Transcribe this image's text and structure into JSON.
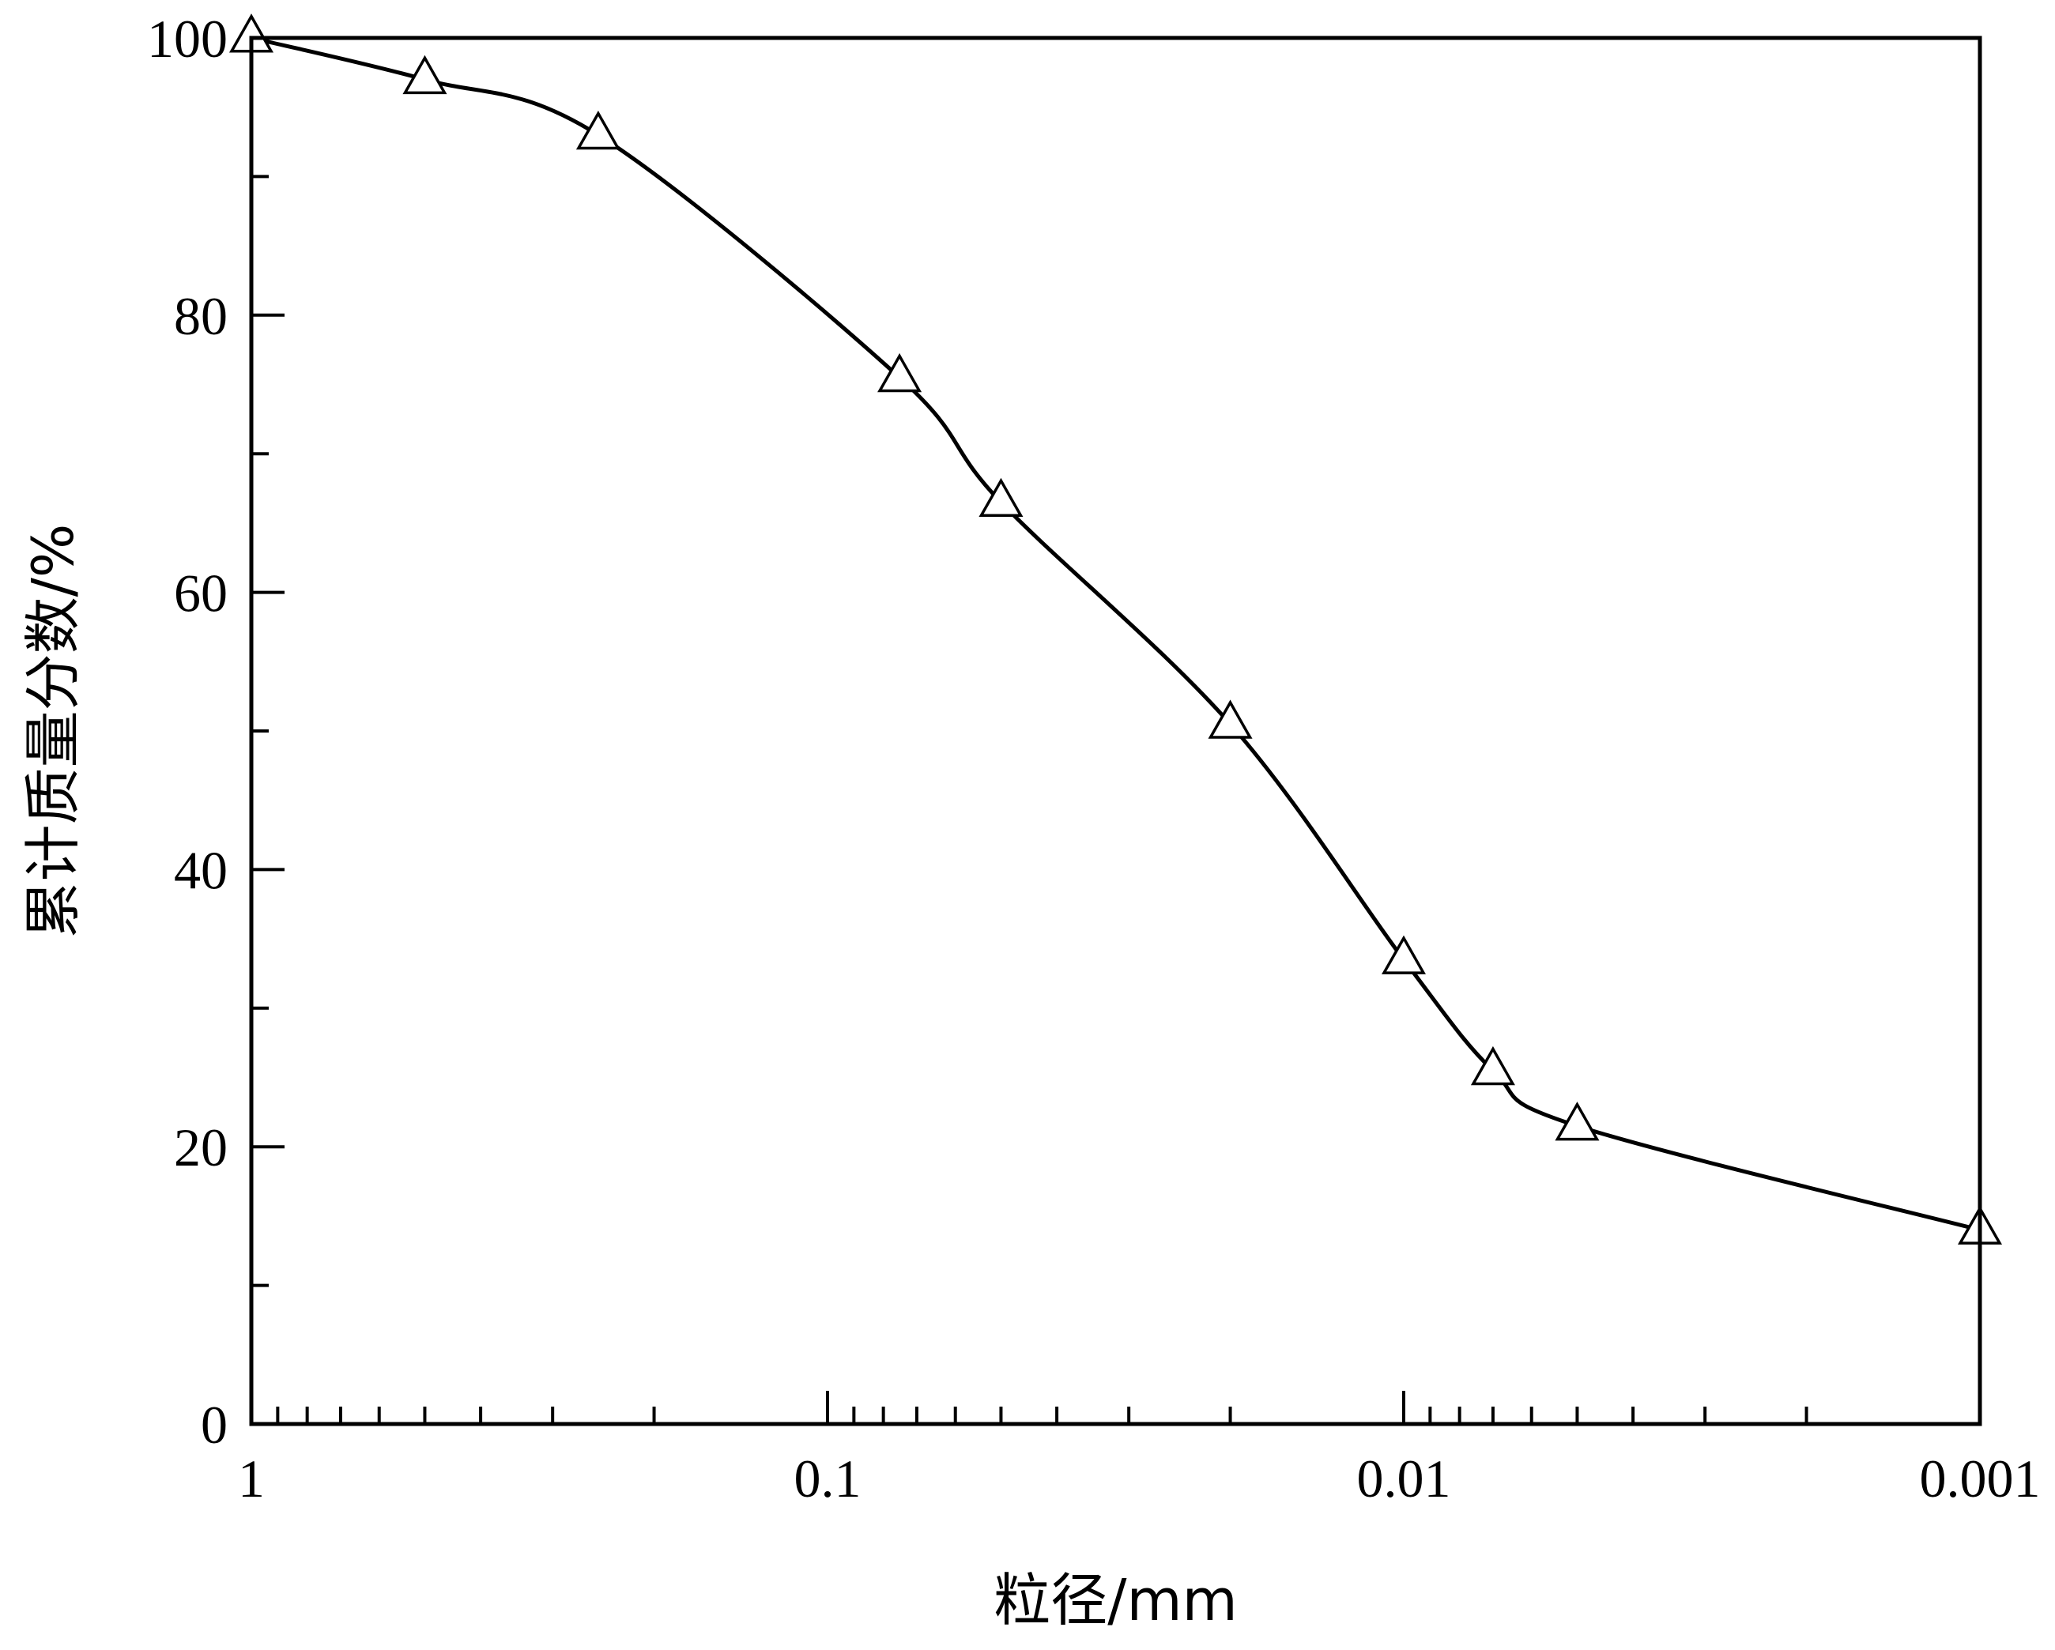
{
  "chart_data": {
    "type": "line",
    "title": "",
    "xlabel": "粒径/mm",
    "ylabel": "累计质量分数/%",
    "x_scale": "log",
    "x_reversed": true,
    "xlim": [
      1,
      0.001
    ],
    "ylim": [
      0,
      100
    ],
    "x_ticks": [
      {
        "value": 1,
        "label": "1"
      },
      {
        "value": 0.1,
        "label": "0.1"
      },
      {
        "value": 0.01,
        "label": "0.01"
      },
      {
        "value": 0.001,
        "label": "0.001"
      }
    ],
    "y_ticks": [
      {
        "value": 0,
        "label": "0"
      },
      {
        "value": 20,
        "label": "20"
      },
      {
        "value": 40,
        "label": "40"
      },
      {
        "value": 60,
        "label": "60"
      },
      {
        "value": 80,
        "label": "80"
      },
      {
        "value": 100,
        "label": "100"
      }
    ],
    "grid": false,
    "legend": "none",
    "marker": "open-triangle",
    "series": [
      {
        "x": [
          1,
          0.5,
          0.25,
          0.075,
          0.05,
          0.02,
          0.01,
          0.007,
          0.005,
          0.001
        ],
        "y": [
          100,
          97,
          93,
          75.5,
          66.5,
          50.5,
          33.5,
          25.5,
          21.5,
          14
        ]
      }
    ]
  }
}
